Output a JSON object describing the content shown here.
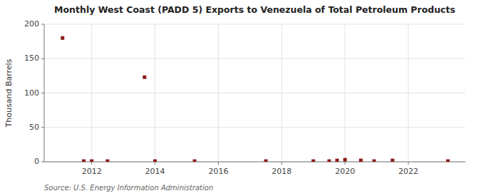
{
  "chart_data": {
    "type": "scatter",
    "title": "Monthly West Coast (PADD 5) Exports to Venezuela of Total Petroleum Products",
    "ylabel": "Thousand Barrels",
    "annotations": [
      "Source: U.S. Energy Information Administration"
    ],
    "color": "#8b1a1a",
    "marker": "square",
    "grid": true,
    "xlim": [
      2010.5,
      2023.8
    ],
    "ylim": [
      0,
      200
    ],
    "yticks": [
      0,
      50,
      100,
      150,
      200
    ],
    "xticks": [
      2012,
      2014,
      2016,
      2018,
      2020,
      2022
    ],
    "x": [
      2011.08,
      2011.75,
      2012.0,
      2012.5,
      2013.67,
      2014.0,
      2015.25,
      2017.5,
      2019.0,
      2019.5,
      2019.75,
      2020.0,
      2020.5,
      2020.92,
      2021.5,
      2023.25
    ],
    "values": [
      180,
      1,
      1,
      1,
      123,
      1,
      1,
      1,
      1,
      1,
      2,
      3,
      2,
      1,
      2,
      1
    ]
  }
}
